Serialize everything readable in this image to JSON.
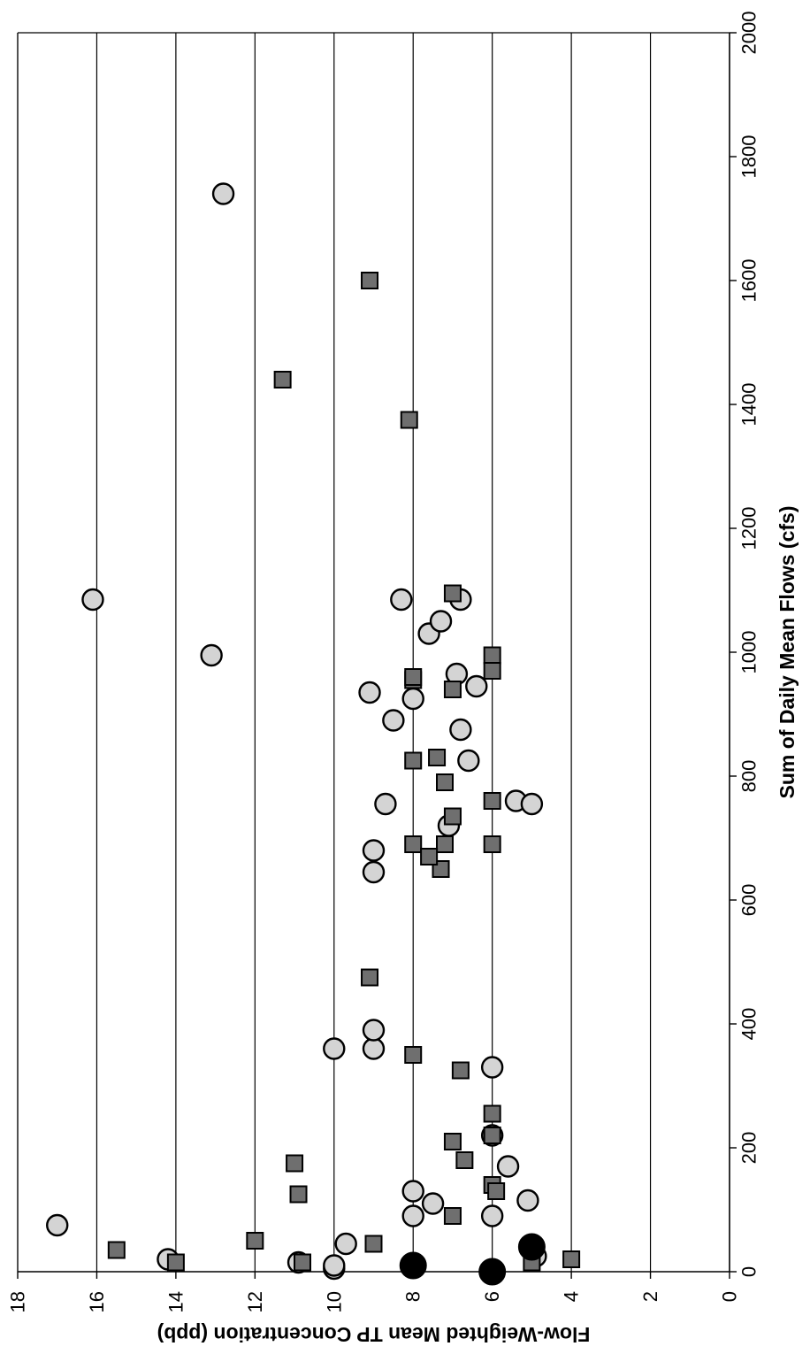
{
  "chart_data": {
    "type": "scatter",
    "title": "",
    "xlabel": "Sum of Daily Mean Flows (cfs)",
    "ylabel": "Flow-Weighted Mean TP Concentration (ppb)",
    "xlim": [
      0,
      2000
    ],
    "ylim": [
      0,
      18
    ],
    "x_ticks": [
      "0",
      "200",
      "400",
      "600",
      "800",
      "1000",
      "1200",
      "1400",
      "1600",
      "1800",
      "2000"
    ],
    "y_ticks": [
      "0",
      "2",
      "4",
      "6",
      "8",
      "10",
      "12",
      "14",
      "16",
      "18"
    ],
    "grid": "horizontal gridlines",
    "legend": "none",
    "colors": {
      "circle_fill": "#d4d4d4",
      "square_fill": "#6f6f6f",
      "large_dot_fill": "#000000",
      "grid": "#000000"
    },
    "series": [
      {
        "marker": "circle",
        "points": [
          [
            75,
            17.0
          ],
          [
            1085,
            16.1
          ],
          [
            1740,
            12.8
          ],
          [
            995,
            13.1
          ],
          [
            20,
            14.2
          ],
          [
            15,
            10.9
          ],
          [
            5,
            10.0
          ],
          [
            10,
            10.0
          ],
          [
            45,
            9.7
          ],
          [
            360,
            10.0
          ],
          [
            360,
            9.0
          ],
          [
            390,
            9.0
          ],
          [
            130,
            8.0
          ],
          [
            90,
            8.0
          ],
          [
            110,
            7.5
          ],
          [
            645,
            9.0
          ],
          [
            680,
            9.0
          ],
          [
            755,
            8.7
          ],
          [
            935,
            9.1
          ],
          [
            890,
            8.5
          ],
          [
            925,
            8.0
          ],
          [
            1085,
            8.3
          ],
          [
            1030,
            7.6
          ],
          [
            1050,
            7.3
          ],
          [
            1085,
            6.8
          ],
          [
            965,
            6.9
          ],
          [
            945,
            6.4
          ],
          [
            875,
            6.8
          ],
          [
            825,
            6.6
          ],
          [
            720,
            7.1
          ],
          [
            760,
            5.4
          ],
          [
            755,
            5.0
          ],
          [
            330,
            6.0
          ],
          [
            220,
            6.0
          ],
          [
            170,
            5.6
          ],
          [
            115,
            5.1
          ],
          [
            90,
            6.0
          ],
          [
            25,
            4.9
          ]
        ]
      },
      {
        "marker": "square",
        "points": [
          [
            35,
            15.5
          ],
          [
            15,
            14.0
          ],
          [
            50,
            12.0
          ],
          [
            175,
            11.0
          ],
          [
            125,
            10.9
          ],
          [
            15,
            10.8
          ],
          [
            45,
            9.0
          ],
          [
            475,
            9.1
          ],
          [
            350,
            8.0
          ],
          [
            325,
            6.8
          ],
          [
            255,
            6.0
          ],
          [
            210,
            7.0
          ],
          [
            180,
            6.7
          ],
          [
            90,
            7.0
          ],
          [
            140,
            6.0
          ],
          [
            220,
            6.0
          ],
          [
            130,
            5.9
          ],
          [
            15,
            5.0
          ],
          [
            20,
            4.0
          ],
          [
            1600,
            9.1
          ],
          [
            1440,
            11.3
          ],
          [
            1375,
            8.1
          ],
          [
            1095,
            7.0
          ],
          [
            995,
            6.0
          ],
          [
            970,
            6.0
          ],
          [
            955,
            8.0
          ],
          [
            960,
            8.0
          ],
          [
            940,
            7.0
          ],
          [
            825,
            8.0
          ],
          [
            830,
            7.4
          ],
          [
            790,
            7.2
          ],
          [
            735,
            7.0
          ],
          [
            760,
            6.0
          ],
          [
            690,
            8.0
          ],
          [
            690,
            7.2
          ],
          [
            650,
            7.3
          ],
          [
            670,
            7.6
          ],
          [
            690,
            6.0
          ]
        ]
      },
      {
        "marker": "large-dot",
        "points": [
          [
            10,
            8.0
          ],
          [
            0,
            6.0
          ],
          [
            40,
            5.0
          ]
        ]
      }
    ]
  }
}
